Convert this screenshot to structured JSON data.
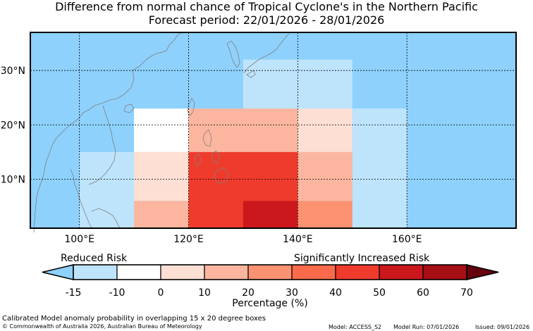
{
  "header": {
    "title_line1": "Difference from normal chance of Tropical Cyclone's in the Northern Pacific",
    "title_line2": "Forecast period: 22/01/2026 - 28/01/2026"
  },
  "map": {
    "lon_range": [
      91,
      180
    ],
    "lat_range": [
      1,
      37
    ],
    "lon_ticks": [
      {
        "value": 100,
        "label": "100°E"
      },
      {
        "value": 120,
        "label": "120°E"
      },
      {
        "value": 140,
        "label": "140°E"
      },
      {
        "value": 160,
        "label": "160°E"
      }
    ],
    "lat_ticks": [
      {
        "value": 10,
        "label": "10°N"
      },
      {
        "value": 20,
        "label": "20°N"
      },
      {
        "value": 30,
        "label": "30°N"
      }
    ],
    "background_color": "#8ed1fc",
    "cells": [
      {
        "lon0": 130,
        "lon1": 150,
        "lat0": 23,
        "lat1": 32,
        "color": "#bee4fc",
        "bin": "-15 to -10"
      },
      {
        "lon0": 110,
        "lon1": 120,
        "lat0": 15,
        "lat1": 23,
        "color": "#ffffff",
        "bin": "-10 to 0"
      },
      {
        "lon0": 120,
        "lon1": 140,
        "lat0": 15,
        "lat1": 23,
        "color": "#fcb69f",
        "bin": "10 to 20"
      },
      {
        "lon0": 140,
        "lon1": 150,
        "lat0": 15,
        "lat1": 23,
        "color": "#fedfd4",
        "bin": "0 to 10"
      },
      {
        "lon0": 150,
        "lon1": 160,
        "lat0": 1,
        "lat1": 23,
        "color": "#bee4fc",
        "bin": "-15 to -10"
      },
      {
        "lon0": 100,
        "lon1": 110,
        "lat0": 1,
        "lat1": 15,
        "color": "#bee4fc",
        "bin": "-15 to -10"
      },
      {
        "lon0": 110,
        "lon1": 120,
        "lat0": 6,
        "lat1": 15,
        "color": "#fedfd4",
        "bin": "0 to 10"
      },
      {
        "lon0": 110,
        "lon1": 120,
        "lat0": 1,
        "lat1": 6,
        "color": "#fcb69f",
        "bin": "10 to 20"
      },
      {
        "lon0": 120,
        "lon1": 140,
        "lat0": 1,
        "lat1": 15,
        "color": "#ef3b2c",
        "bin": "40 to 50"
      },
      {
        "lon0": 130,
        "lon1": 140,
        "lat0": 1,
        "lat1": 6,
        "color": "#cb181d",
        "bin": "50 to 60"
      },
      {
        "lon0": 140,
        "lon1": 150,
        "lat0": 6,
        "lat1": 15,
        "color": "#fcb69f",
        "bin": "10 to 20"
      },
      {
        "lon0": 140,
        "lon1": 150,
        "lat0": 1,
        "lat1": 6,
        "color": "#fc9272",
        "bin": "20 to 30"
      }
    ]
  },
  "colorbar": {
    "label_reduced": "Reduced Risk",
    "label_increased": "Significantly Increased Risk",
    "ticks": [
      "-15",
      "-10",
      "0",
      "10",
      "20",
      "30",
      "40",
      "50",
      "60",
      "70"
    ],
    "under_color": "#8ed1fc",
    "over_color": "#67000d",
    "colors": [
      "#bee4fc",
      "#ffffff",
      "#fedfd4",
      "#fcb69f",
      "#fc9272",
      "#fb6a4a",
      "#ef3b2c",
      "#cb181d",
      "#a50f15"
    ],
    "xlabel": "Percentage (%)"
  },
  "footer": {
    "description": "Calibrated Model anomaly probability in overlapping 15 x 20 degree boxes",
    "copyright": "© Commonwealth of Australia 2026, Australian Bureau of Meteorology",
    "model": "Model: ACCESS_S2",
    "model_run": "Model Run: 07/01/2026",
    "issued": "Issued: 09/01/2026"
  }
}
